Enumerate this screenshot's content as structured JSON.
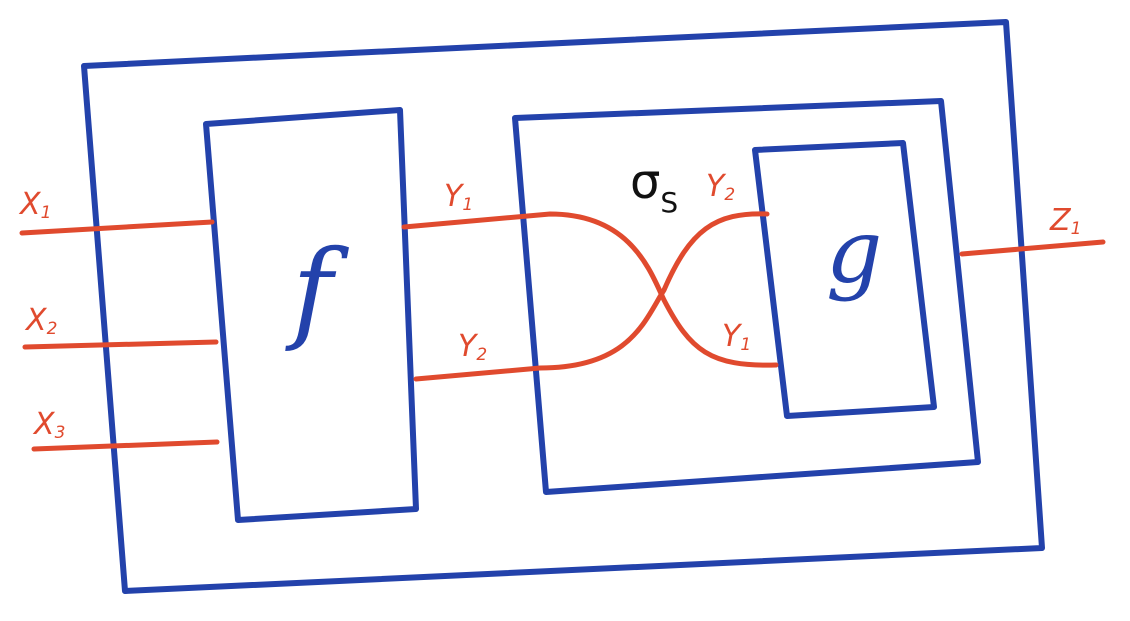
{
  "colors": {
    "box": "#2342AB",
    "wire": "#E04A2E",
    "symmetry": "#111111"
  },
  "labels": {
    "f": "f",
    "g": "g",
    "sigma": "σ",
    "sigma_sub": "S",
    "inputs": [
      {
        "base": "X",
        "sub": "1"
      },
      {
        "base": "X",
        "sub": "2"
      },
      {
        "base": "X",
        "sub": "3"
      }
    ],
    "f_outputs": [
      {
        "base": "Y",
        "sub": "1"
      },
      {
        "base": "Y",
        "sub": "2"
      }
    ],
    "g_inputs": [
      {
        "base": "Y",
        "sub": "2"
      },
      {
        "base": "Y",
        "sub": "1"
      }
    ],
    "output": {
      "base": "Z",
      "sub": "1"
    }
  }
}
